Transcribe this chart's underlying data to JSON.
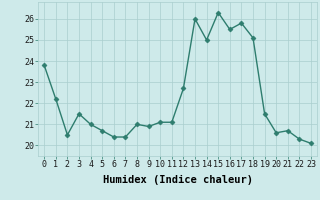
{
  "x": [
    0,
    1,
    2,
    3,
    4,
    5,
    6,
    7,
    8,
    9,
    10,
    11,
    12,
    13,
    14,
    15,
    16,
    17,
    18,
    19,
    20,
    21,
    22,
    23
  ],
  "y": [
    23.8,
    22.2,
    20.5,
    21.5,
    21.0,
    20.7,
    20.4,
    20.4,
    21.0,
    20.9,
    21.1,
    21.1,
    22.7,
    26.0,
    25.0,
    26.3,
    25.5,
    25.8,
    25.1,
    21.5,
    20.6,
    20.7,
    20.3,
    20.1
  ],
  "line_color": "#2e7d6e",
  "marker": "D",
  "marker_size": 2.5,
  "bg_color": "#ceeaea",
  "grid_color": "#aacece",
  "xlabel": "Humidex (Indice chaleur)",
  "ylim": [
    19.5,
    26.8
  ],
  "xlim": [
    -0.5,
    23.5
  ],
  "yticks": [
    20,
    21,
    22,
    23,
    24,
    25,
    26
  ],
  "xticks": [
    0,
    1,
    2,
    3,
    4,
    5,
    6,
    7,
    8,
    9,
    10,
    11,
    12,
    13,
    14,
    15,
    16,
    17,
    18,
    19,
    20,
    21,
    22,
    23
  ],
  "tick_fontsize": 6,
  "xlabel_fontsize": 7.5,
  "linewidth": 1.0
}
